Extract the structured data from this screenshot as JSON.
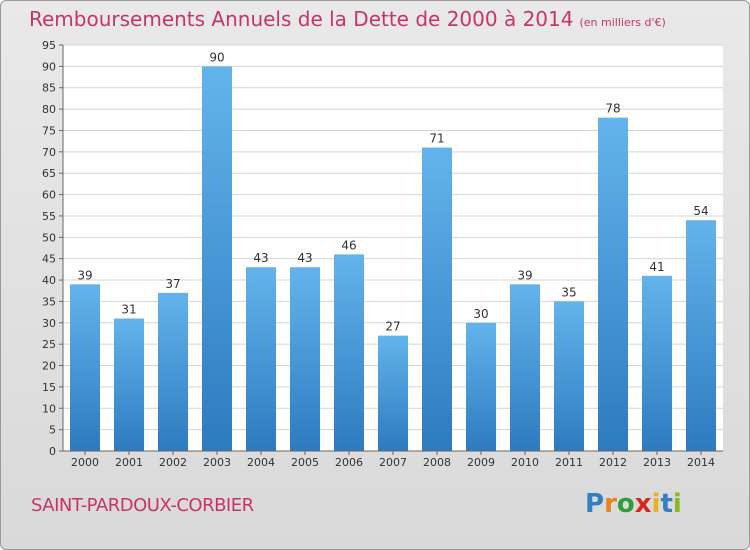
{
  "title": "Remboursements Annuels de la Dette de 2000 à 2014",
  "unit": "(en milliers d'€)",
  "commune": "SAINT-PARDOUX-CORBIER",
  "logo": {
    "letters": [
      "P",
      "r",
      "o",
      "x",
      "i",
      "t",
      "i"
    ],
    "colors": [
      "#2f7fc1",
      "#e8841a",
      "#2f9e3a",
      "#d7281e",
      "#e8b21a",
      "#2f7fc1",
      "#8ab825"
    ]
  },
  "colors": {
    "title": "#c8346a",
    "bar_light": "#63b3ec",
    "bar_dark": "#2d7bbf"
  },
  "chart_data": {
    "type": "bar",
    "categories": [
      "2000",
      "2001",
      "2002",
      "2003",
      "2004",
      "2005",
      "2006",
      "2007",
      "2008",
      "2009",
      "2010",
      "2011",
      "2012",
      "2013",
      "2014"
    ],
    "values": [
      39,
      31,
      37,
      90,
      43,
      43,
      46,
      27,
      71,
      30,
      39,
      35,
      78,
      41,
      54
    ],
    "ylim": [
      0,
      95
    ],
    "yticks": [
      0,
      5,
      10,
      15,
      20,
      25,
      30,
      35,
      40,
      45,
      50,
      55,
      60,
      65,
      70,
      75,
      80,
      85,
      90,
      95
    ],
    "grid": true,
    "data_labels": true
  }
}
